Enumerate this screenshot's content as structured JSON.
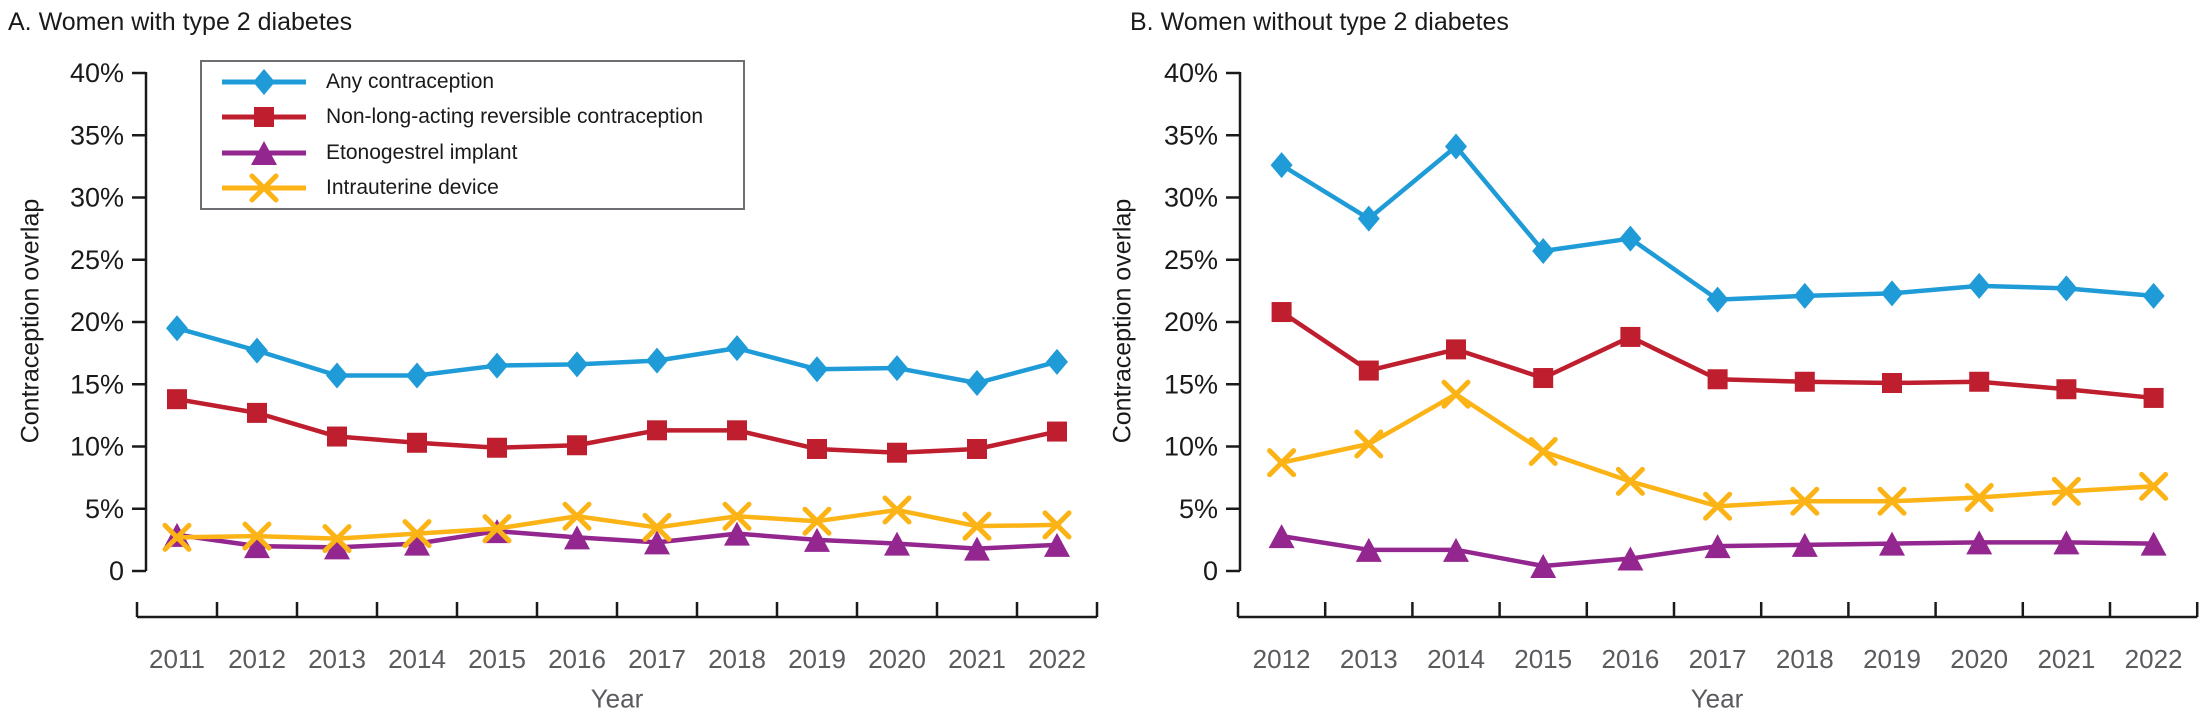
{
  "chart_data": [
    {
      "type": "line",
      "panel": "A",
      "title": "A. Women with type 2 diabetes",
      "ylabel": "Contraception overlap",
      "xlabel": "Year",
      "ylim": [
        0,
        40
      ],
      "yticks": [
        0,
        5,
        10,
        15,
        20,
        25,
        30,
        35,
        40
      ],
      "ytick_labels": [
        "0",
        "5%",
        "10%",
        "15%",
        "20%",
        "25%",
        "30%",
        "35%",
        "40%"
      ],
      "x": [
        2011,
        2012,
        2013,
        2014,
        2015,
        2016,
        2017,
        2018,
        2019,
        2020,
        2021,
        2022
      ],
      "legend_position": "upper-left",
      "grid": false,
      "series": [
        {
          "name": "Any contraception",
          "marker": "diamond",
          "color": "#1f9bd7",
          "values": [
            19.5,
            17.7,
            15.7,
            15.7,
            16.5,
            16.6,
            16.9,
            17.9,
            16.2,
            16.3,
            15.1,
            16.8
          ]
        },
        {
          "name": "Non-long-acting reversible contraception",
          "marker": "square",
          "color": "#be1e2d",
          "values": [
            13.8,
            12.7,
            10.8,
            10.3,
            9.9,
            10.1,
            11.3,
            11.3,
            9.8,
            9.5,
            9.8,
            11.2
          ]
        },
        {
          "name": "Etonogestrel implant",
          "marker": "triangle",
          "color": "#93278f",
          "values": [
            2.9,
            2.0,
            1.9,
            2.2,
            3.2,
            2.7,
            2.3,
            3.0,
            2.5,
            2.2,
            1.8,
            2.1
          ]
        },
        {
          "name": "Intrauterine device",
          "marker": "x",
          "color": "#fcb316",
          "values": [
            2.7,
            2.8,
            2.6,
            3.0,
            3.4,
            4.4,
            3.5,
            4.4,
            4.0,
            4.9,
            3.6,
            3.7
          ]
        }
      ]
    },
    {
      "type": "line",
      "panel": "B",
      "title": "B. Women without type 2 diabetes",
      "ylabel": "Contraception overlap",
      "xlabel": "Year",
      "ylim": [
        0,
        40
      ],
      "yticks": [
        0,
        5,
        10,
        15,
        20,
        25,
        30,
        35,
        40
      ],
      "ytick_labels": [
        "0",
        "5%",
        "10%",
        "15%",
        "20%",
        "25%",
        "30%",
        "35%",
        "40%"
      ],
      "x": [
        2012,
        2013,
        2014,
        2015,
        2016,
        2017,
        2018,
        2019,
        2020,
        2021,
        2022
      ],
      "legend_position": "none",
      "grid": false,
      "series": [
        {
          "name": "Any contraception",
          "marker": "diamond",
          "color": "#1f9bd7",
          "values": [
            32.6,
            28.3,
            34.1,
            25.7,
            26.7,
            21.8,
            22.1,
            22.3,
            22.9,
            22.7,
            22.1
          ]
        },
        {
          "name": "Non-long-acting reversible contraception",
          "marker": "square",
          "color": "#be1e2d",
          "values": [
            20.8,
            16.1,
            17.8,
            15.5,
            18.8,
            15.4,
            15.2,
            15.1,
            15.2,
            14.6,
            13.9
          ]
        },
        {
          "name": "Etonogestrel implant",
          "marker": "triangle",
          "color": "#93278f",
          "values": [
            2.8,
            1.7,
            1.7,
            0.4,
            1.0,
            2.0,
            2.1,
            2.2,
            2.3,
            2.3,
            2.2
          ]
        },
        {
          "name": "Intrauterine device",
          "marker": "x",
          "color": "#fcb316",
          "values": [
            8.7,
            10.2,
            14.2,
            9.6,
            7.2,
            5.2,
            5.6,
            5.6,
            5.9,
            6.4,
            6.8
          ]
        }
      ]
    }
  ],
  "style": {
    "axis_color": "#1a1a1a",
    "year_label_color": "#595b5e"
  }
}
